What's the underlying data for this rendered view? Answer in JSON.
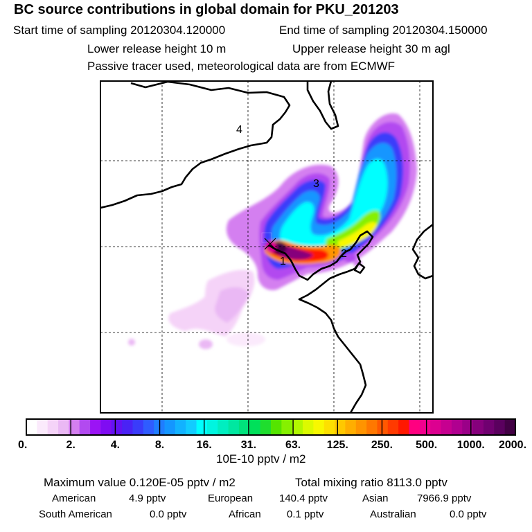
{
  "header": {
    "title": "BC  source contributions in global domain for PKU_201203",
    "start_label": "Start time of sampling 20120304.120000",
    "end_label": "End time of sampling 20120304.150000",
    "lower_label": "Lower release height   10 m",
    "upper_label": "Upper release height   30 m    agl",
    "tracer_label": "Passive tracer used, meteorological data are from ECMWF"
  },
  "map": {
    "region_labels": [
      "1",
      "2",
      "3",
      "4"
    ]
  },
  "colorbar": {
    "tick_labels": [
      "0.",
      "2.",
      "4.",
      "8.",
      "16.",
      "31.",
      "63.",
      "125.",
      "250.",
      "500.",
      "1000.",
      "2000."
    ],
    "colors": [
      "#ffffff",
      "#fbeafc",
      "#f5d3f8",
      "#eab8f4",
      "#d47ff0",
      "#b24af0",
      "#9b14f5",
      "#7f0cf2",
      "#6312f2",
      "#4a22f5",
      "#3a3cfa",
      "#2f5cff",
      "#1f7dff",
      "#1496ff",
      "#12b2ff",
      "#12ccff",
      "#00ffff",
      "#00f5e0",
      "#00eec0",
      "#00e7a0",
      "#00e27c",
      "#00e05a",
      "#1fdd2e",
      "#55e400",
      "#86f000",
      "#b2f700",
      "#dcfa00",
      "#f8f800",
      "#fde000",
      "#ffc800",
      "#ffae00",
      "#ff9400",
      "#ff7800",
      "#ff5800",
      "#ff3a00",
      "#ff1800",
      "#ff0080",
      "#f2008e",
      "#dc0090",
      "#c60090",
      "#b00090",
      "#9a0088",
      "#86007c",
      "#700070",
      "#5a005e",
      "#420044"
    ],
    "unit": "10E-10 pptv / m2"
  },
  "stats": {
    "max_line": "Maximum value  0.120E-05 pptv / m2",
    "total_line": "Total mixing ratio     8113.0 pptv",
    "american_label": "American",
    "american_value": "4.9 pptv",
    "european_label": "European",
    "european_value": "140.4 pptv",
    "asian_label": "Asian",
    "asian_value": "7966.9 pptv",
    "south_american_label": "South American",
    "south_american_value": "0.0 pptv",
    "african_label": "African",
    "african_value": "0.1 pptv",
    "australian_label": "Australian",
    "australian_value": "0.0 pptv"
  },
  "chart_data": {
    "type": "heatmap",
    "title": "BC  source contributions in global domain for PKU_201203",
    "colorbar_unit": "10E-10 pptv / m2",
    "colorbar_ticks": [
      0,
      2,
      4,
      8,
      16,
      31,
      63,
      125,
      250,
      500,
      1000,
      2000
    ],
    "max_value": "0.120E-05 pptv / m2",
    "total_mixing_ratio_pptv": 8113.0,
    "contributions_pptv": {
      "American": 4.9,
      "European": 140.4,
      "Asian": 7966.9,
      "South American": 0.0,
      "African": 0.1,
      "Australian": 0.0
    },
    "grid": true
  }
}
